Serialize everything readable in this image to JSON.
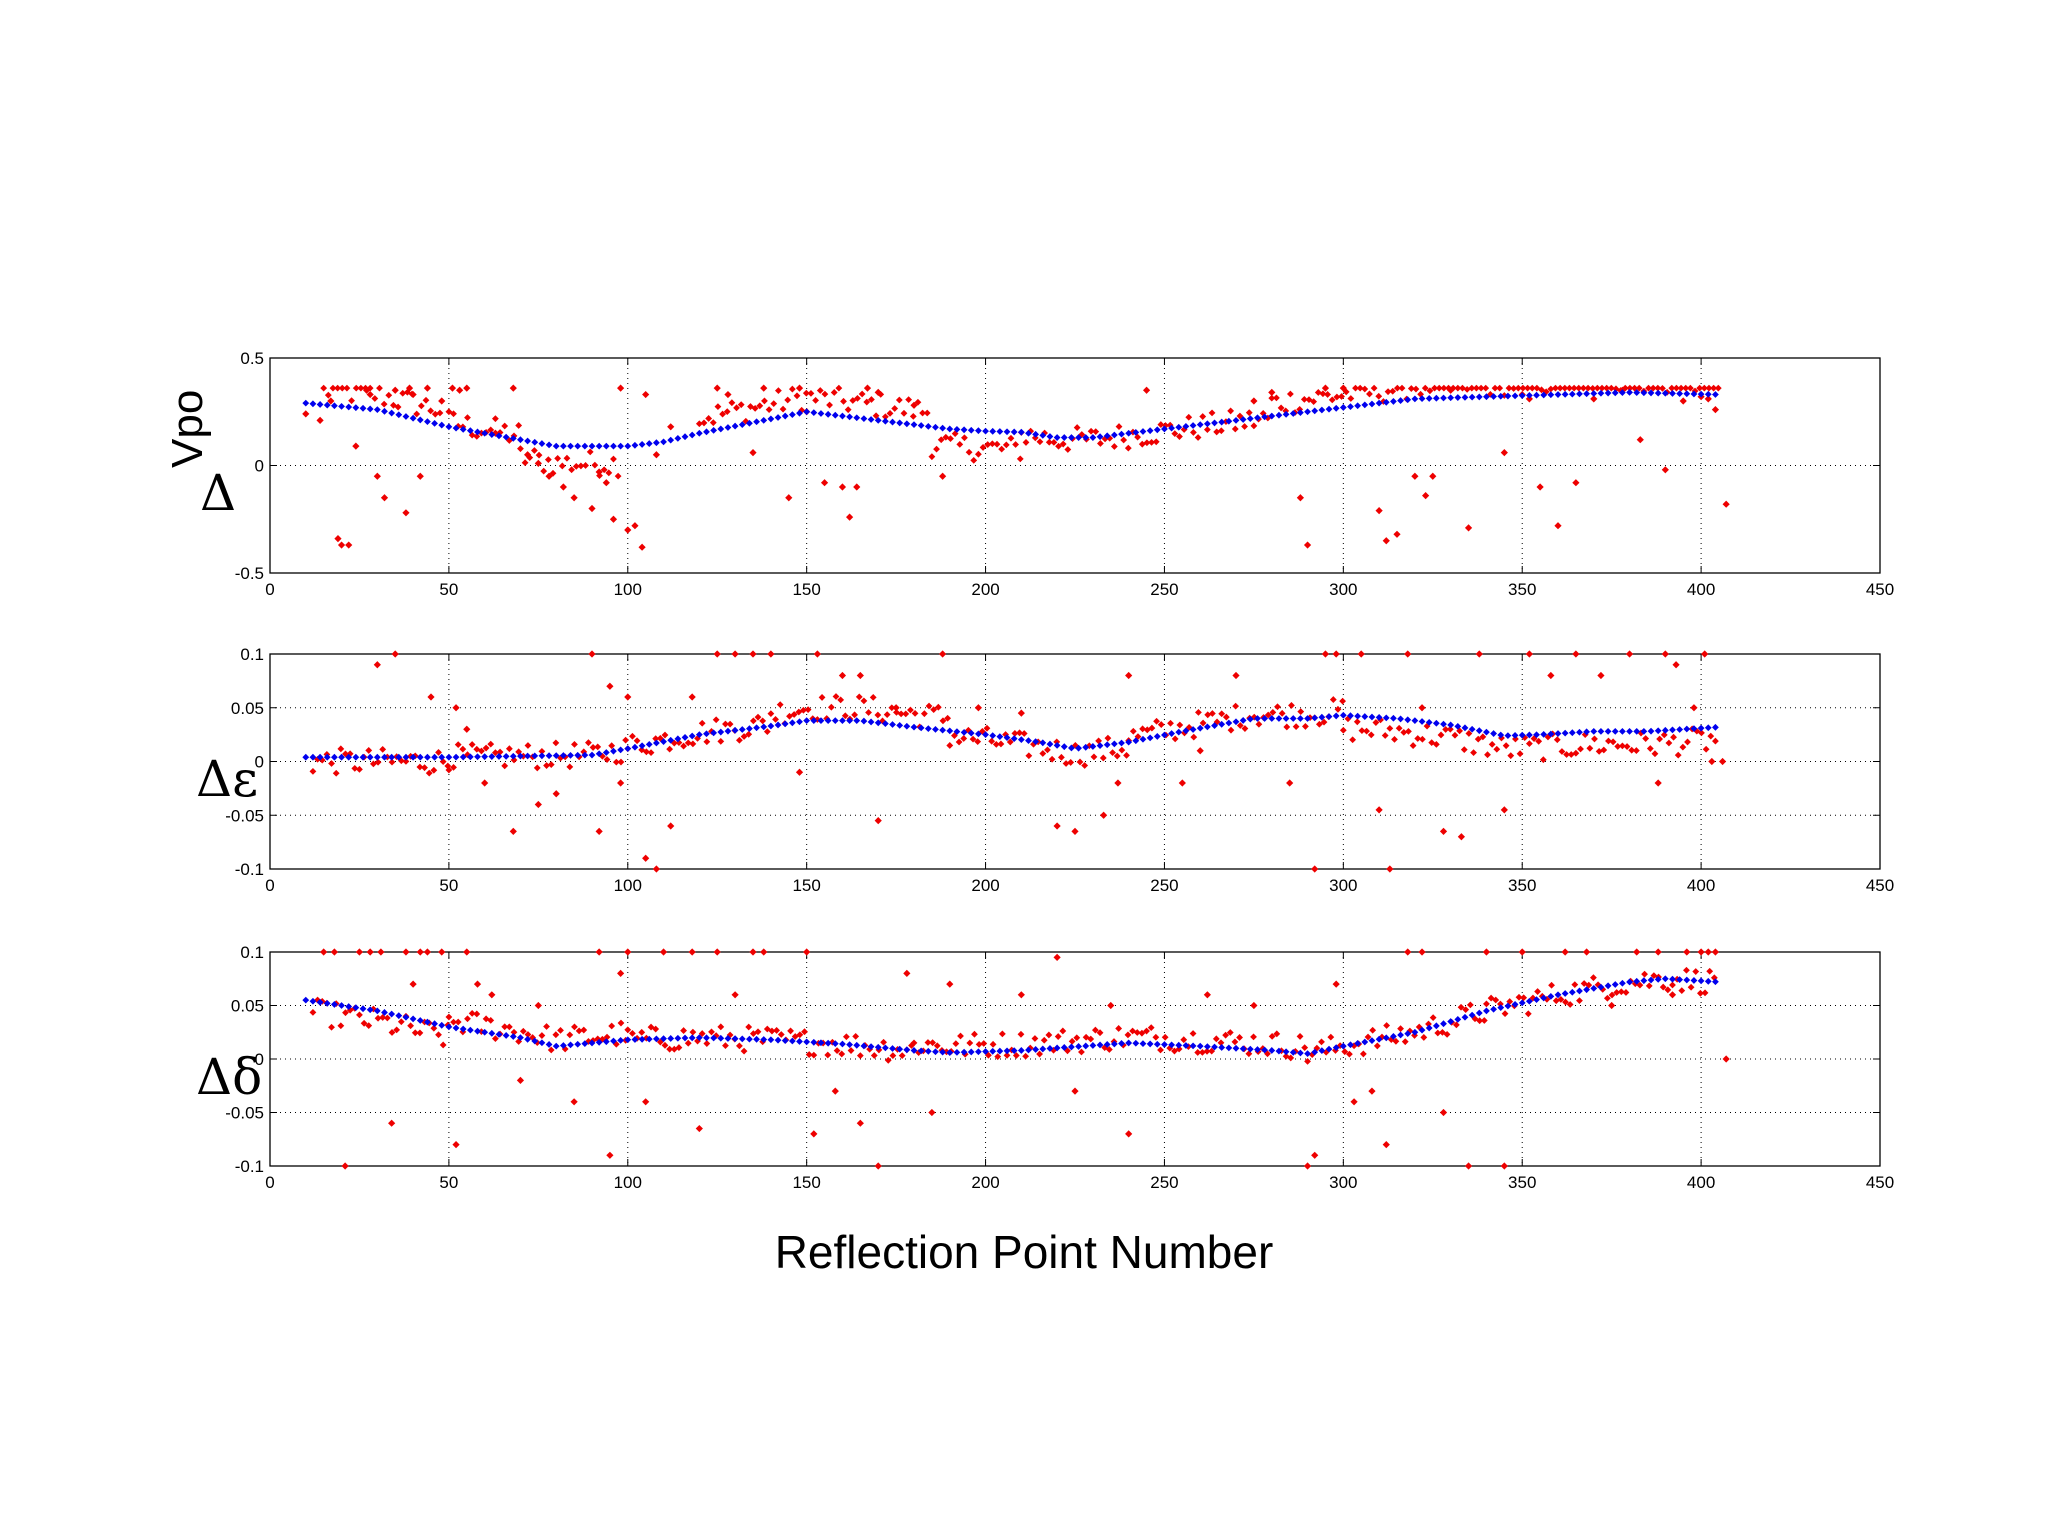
{
  "chart_data": {
    "type": "scatter",
    "xlabel": "Reflection Point Number",
    "xlim": [
      0,
      450
    ],
    "xticks": [
      0,
      50,
      100,
      150,
      200,
      250,
      300,
      350,
      400,
      450
    ],
    "grid": true,
    "colors": {
      "series_smooth": "#0000ee",
      "series_raw": "#ee0000"
    },
    "panels": [
      {
        "id": "delta-vpo",
        "ylabel_symbol": "Δ",
        "ylabel_text": "Vpo",
        "ylim": [
          -0.5,
          0.5
        ],
        "yticks": [
          -0.5,
          0,
          0.5
        ],
        "ytick_labels": [
          "-0.5",
          "0",
          "0.5"
        ],
        "smooth_knots": {
          "x": [
            10,
            30,
            50,
            70,
            80,
            90,
            100,
            110,
            120,
            135,
            150,
            160,
            170,
            180,
            190,
            200,
            210,
            220,
            230,
            240,
            250,
            260,
            280,
            300,
            320,
            340,
            360,
            380,
            405
          ],
          "y": [
            0.29,
            0.26,
            0.18,
            0.12,
            0.09,
            0.09,
            0.09,
            0.11,
            0.15,
            0.2,
            0.25,
            0.23,
            0.21,
            0.19,
            0.17,
            0.16,
            0.155,
            0.13,
            0.13,
            0.15,
            0.17,
            0.19,
            0.23,
            0.27,
            0.31,
            0.32,
            0.33,
            0.34,
            0.33
          ]
        },
        "outliers": {
          "x": [
            10,
            14,
            17,
            19,
            20,
            22,
            24,
            27,
            28,
            30,
            32,
            35,
            38,
            39,
            40,
            42,
            44,
            48,
            51,
            53,
            55,
            63,
            68,
            72,
            75,
            78,
            82,
            85,
            90,
            92,
            94,
            96,
            98,
            100,
            102,
            104,
            105,
            108,
            112,
            125,
            128,
            135,
            138,
            145,
            148,
            150,
            155,
            160,
            162,
            164,
            167,
            170,
            180,
            188,
            245,
            275,
            280,
            288,
            290,
            295,
            300,
            310,
            312,
            315,
            320,
            323,
            325,
            330,
            335,
            345,
            350,
            352,
            355,
            360,
            365,
            370,
            378,
            383,
            390,
            395,
            400,
            402,
            404,
            407
          ],
          "y": [
            0.24,
            0.21,
            0.3,
            -0.34,
            -0.37,
            -0.37,
            0.09,
            0.35,
            0.33,
            -0.05,
            -0.15,
            0.35,
            -0.22,
            0.36,
            0.33,
            -0.05,
            0.36,
            0.3,
            0.36,
            0.35,
            0.36,
            0.15,
            0.36,
            0.05,
            0.01,
            -0.05,
            -0.1,
            -0.15,
            -0.2,
            -0.03,
            -0.08,
            -0.25,
            0.36,
            -0.3,
            -0.28,
            -0.38,
            0.33,
            0.05,
            0.18,
            0.36,
            0.33,
            0.06,
            0.36,
            -0.15,
            0.36,
            0.25,
            -0.08,
            -0.1,
            -0.24,
            -0.1,
            0.36,
            0.34,
            0.28,
            -0.05,
            0.35,
            0.3,
            0.34,
            -0.15,
            -0.37,
            0.36,
            0.36,
            -0.21,
            -0.35,
            -0.32,
            -0.05,
            -0.14,
            -0.05,
            0.35,
            -0.29,
            0.06,
            0.33,
            0.31,
            -0.1,
            -0.28,
            -0.08,
            0.31,
            0.35,
            0.12,
            -0.02,
            0.3,
            0.32,
            0.31,
            0.26,
            -0.18
          ]
        },
        "clusters": [
          {
            "from": 15,
            "to": 48,
            "dy": 0.07,
            "clamp": 0.36
          },
          {
            "from": 50,
            "to": 70,
            "dy": 0.02,
            "clamp": 0.36
          },
          {
            "from": 70,
            "to": 98,
            "dy": -0.08,
            "clamp": 0.36
          },
          {
            "from": 120,
            "to": 185,
            "dy": 0.07,
            "clamp": 0.36
          },
          {
            "from": 185,
            "to": 210,
            "dy": -0.08,
            "clamp": 0.36
          },
          {
            "from": 210,
            "to": 280,
            "dy": -0.01,
            "clamp": 0.36
          },
          {
            "from": 280,
            "to": 405,
            "dy": 0.06,
            "clamp": 0.36
          }
        ]
      },
      {
        "id": "delta-epsilon",
        "ylabel_symbol": "Δε",
        "ylabel_text": "",
        "ylim": [
          -0.1,
          0.1
        ],
        "yticks": [
          -0.1,
          -0.05,
          0,
          0.05,
          0.1
        ],
        "ytick_labels": [
          "-0.1",
          "-0.05",
          "0",
          "0.05",
          "0.1"
        ],
        "smooth_knots": {
          "x": [
            10,
            50,
            90,
            100,
            120,
            140,
            150,
            165,
            180,
            200,
            215,
            225,
            240,
            255,
            275,
            290,
            300,
            315,
            330,
            345,
            355,
            370,
            385,
            405
          ],
          "y": [
            0.004,
            0.004,
            0.006,
            0.012,
            0.025,
            0.033,
            0.038,
            0.038,
            0.032,
            0.025,
            0.018,
            0.012,
            0.018,
            0.028,
            0.04,
            0.04,
            0.043,
            0.04,
            0.034,
            0.024,
            0.025,
            0.028,
            0.028,
            0.032
          ]
        },
        "outliers": {
          "x": [
            30,
            35,
            45,
            52,
            55,
            60,
            68,
            75,
            80,
            90,
            92,
            95,
            98,
            100,
            105,
            108,
            112,
            118,
            125,
            130,
            135,
            140,
            148,
            153,
            160,
            165,
            170,
            175,
            188,
            198,
            210,
            220,
            225,
            233,
            237,
            240,
            255,
            260,
            270,
            285,
            292,
            295,
            298,
            305,
            310,
            313,
            318,
            322,
            328,
            333,
            338,
            345,
            352,
            358,
            365,
            372,
            380,
            388,
            390,
            393,
            398,
            401,
            403,
            406
          ],
          "y": [
            0.09,
            0.1,
            0.06,
            0.05,
            0.03,
            -0.02,
            -0.065,
            -0.04,
            -0.03,
            0.1,
            -0.065,
            0.07,
            -0.02,
            0.06,
            -0.09,
            -0.1,
            -0.06,
            0.06,
            0.1,
            0.1,
            0.1,
            0.1,
            -0.01,
            0.1,
            0.08,
            0.08,
            -0.055,
            0.05,
            0.1,
            0.05,
            0.045,
            -0.06,
            -0.065,
            -0.05,
            -0.02,
            0.08,
            -0.02,
            0.01,
            0.08,
            -0.02,
            -0.1,
            0.1,
            0.1,
            0.1,
            -0.045,
            -0.1,
            0.1,
            0.05,
            -0.065,
            -0.07,
            0.1,
            -0.045,
            0.1,
            0.08,
            0.1,
            0.08,
            0.1,
            -0.02,
            0.1,
            0.09,
            0.05,
            0.1,
            0.0,
            0.0
          ]
        },
        "clusters": [
          {
            "from": 12,
            "to": 50,
            "dy": -0.004,
            "clamp": 0.1
          },
          {
            "from": 50,
            "to": 100,
            "dy": 0.0,
            "clamp": 0.1
          },
          {
            "from": 100,
            "to": 140,
            "dy": 0.002,
            "clamp": 0.1
          },
          {
            "from": 140,
            "to": 190,
            "dy": 0.012,
            "clamp": 0.1
          },
          {
            "from": 190,
            "to": 240,
            "dy": -0.005,
            "clamp": 0.1
          },
          {
            "from": 240,
            "to": 300,
            "dy": 0.004,
            "clamp": 0.1
          },
          {
            "from": 300,
            "to": 405,
            "dy": -0.012,
            "clamp": 0.1
          }
        ]
      },
      {
        "id": "delta-delta",
        "ylabel_symbol": "Δδ",
        "ylabel_text": "",
        "ylim": [
          -0.1,
          0.1
        ],
        "yticks": [
          -0.1,
          -0.05,
          0,
          0.05,
          0.1
        ],
        "ytick_labels": [
          "-0.1",
          "-0.05",
          "0",
          "0.05",
          "0.1"
        ],
        "smooth_knots": {
          "x": [
            10,
            30,
            50,
            70,
            80,
            90,
            100,
            120,
            140,
            160,
            180,
            190,
            210,
            240,
            260,
            280,
            290,
            300,
            320,
            340,
            360,
            380,
            390,
            405
          ],
          "y": [
            0.055,
            0.045,
            0.03,
            0.02,
            0.012,
            0.015,
            0.018,
            0.02,
            0.018,
            0.014,
            0.008,
            0.006,
            0.008,
            0.015,
            0.012,
            0.008,
            0.005,
            0.012,
            0.025,
            0.045,
            0.06,
            0.072,
            0.075,
            0.072
          ]
        },
        "outliers": {
          "x": [
            15,
            18,
            21,
            25,
            28,
            31,
            34,
            38,
            40,
            42,
            44,
            48,
            52,
            55,
            58,
            62,
            70,
            75,
            85,
            92,
            95,
            98,
            100,
            105,
            110,
            118,
            120,
            125,
            130,
            135,
            138,
            150,
            152,
            158,
            165,
            170,
            178,
            185,
            190,
            210,
            220,
            225,
            235,
            240,
            262,
            275,
            290,
            292,
            298,
            303,
            308,
            312,
            318,
            322,
            328,
            335,
            340,
            345,
            350,
            362,
            368,
            375,
            382,
            388,
            392,
            396,
            400,
            402,
            404,
            407
          ],
          "y": [
            0.1,
            0.1,
            -0.1,
            0.1,
            0.1,
            0.1,
            -0.06,
            0.1,
            0.07,
            0.1,
            0.1,
            0.1,
            -0.08,
            0.1,
            0.07,
            0.06,
            -0.02,
            0.05,
            -0.04,
            0.1,
            -0.09,
            0.08,
            0.1,
            -0.04,
            0.1,
            0.1,
            -0.065,
            0.1,
            0.06,
            0.1,
            0.1,
            0.1,
            -0.07,
            -0.03,
            -0.06,
            -0.1,
            0.08,
            -0.05,
            0.07,
            0.06,
            0.095,
            -0.03,
            0.05,
            -0.07,
            0.06,
            0.05,
            -0.1,
            -0.09,
            0.07,
            -0.04,
            -0.03,
            -0.08,
            0.1,
            0.1,
            -0.05,
            -0.1,
            0.1,
            -0.1,
            0.1,
            0.1,
            0.1,
            0.05,
            0.1,
            0.1,
            0.06,
            0.1,
            0.1,
            0.1,
            0.1,
            0.0
          ]
        },
        "clusters": [
          {
            "from": 12,
            "to": 50,
            "dy": -0.01,
            "clamp": 0.1
          },
          {
            "from": 50,
            "to": 100,
            "dy": 0.006,
            "clamp": 0.1
          },
          {
            "from": 100,
            "to": 180,
            "dy": 0.0,
            "clamp": 0.1
          },
          {
            "from": 180,
            "to": 290,
            "dy": 0.006,
            "clamp": 0.1
          },
          {
            "from": 290,
            "to": 340,
            "dy": 0.0,
            "clamp": 0.1
          },
          {
            "from": 340,
            "to": 405,
            "dy": 0.0,
            "clamp": 0.1
          }
        ]
      }
    ]
  }
}
